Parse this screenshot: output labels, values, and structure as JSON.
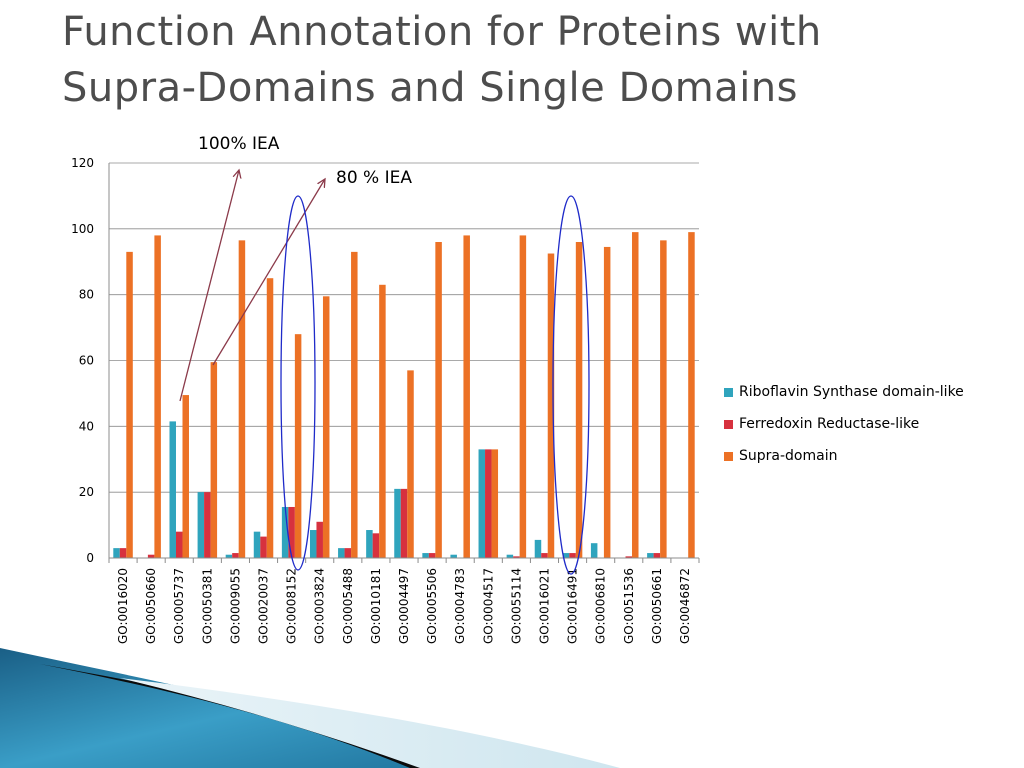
{
  "slide": {
    "title_line1": "Function Annotation for Proteins with",
    "title_line2": "Supra-Domains and Single Domains"
  },
  "annotations": {
    "iea_100": "100% IEA",
    "iea_80": "80 % IEA"
  },
  "colors": {
    "riboflavin": "#2fa4bd",
    "ferredoxin": "#d7313e",
    "supra": "#ec7125",
    "arrow": "#8b3a4a",
    "ellipse": "#1f2bc9",
    "grid": "#8c8c8c"
  },
  "chart_data": {
    "type": "bar",
    "title": "",
    "xlabel": "",
    "ylabel": "",
    "ylim": [
      0,
      120
    ],
    "yticks": [
      0,
      20,
      40,
      60,
      80,
      100,
      120
    ],
    "grid": true,
    "legend_position": "right",
    "categories": [
      "GO:0016020",
      "GO:0050660",
      "GO:0005737",
      "GO:0050381",
      "GO:0009055",
      "GO:0020037",
      "GO:0008152",
      "GO:0003824",
      "GO:0005488",
      "GO:0010181",
      "GO:0004497",
      "GO:0005506",
      "GO:0004783",
      "GO:0004517",
      "GO:0055114",
      "GO:0016021",
      "GO:0016491",
      "GO:0006810",
      "GO:0051536",
      "GO:0050661",
      "GO:0046872"
    ],
    "series": [
      {
        "name": "Riboflavin Synthase domain-like",
        "color_key": "riboflavin",
        "values": [
          3,
          0,
          41.5,
          20,
          1,
          8,
          15.5,
          8.5,
          3,
          8.5,
          21,
          1.5,
          1,
          33,
          1,
          5.5,
          1.5,
          4.5,
          0,
          1.5,
          0
        ]
      },
      {
        "name": "Ferredoxin Reductase-like",
        "color_key": "ferredoxin",
        "values": [
          3,
          1,
          8,
          20,
          1.5,
          6.5,
          15.5,
          11,
          3,
          7.5,
          21,
          1.5,
          0,
          33,
          0.5,
          1.5,
          1.5,
          0,
          0.5,
          1.5,
          0
        ]
      },
      {
        "name": "Supra-domain",
        "color_key": "supra",
        "values": [
          93,
          98,
          49.5,
          59.5,
          96.5,
          85,
          68,
          79.5,
          93,
          83,
          57,
          96,
          98,
          33,
          98,
          92.5,
          96,
          94.5,
          99,
          96.5,
          99
        ]
      }
    ]
  }
}
